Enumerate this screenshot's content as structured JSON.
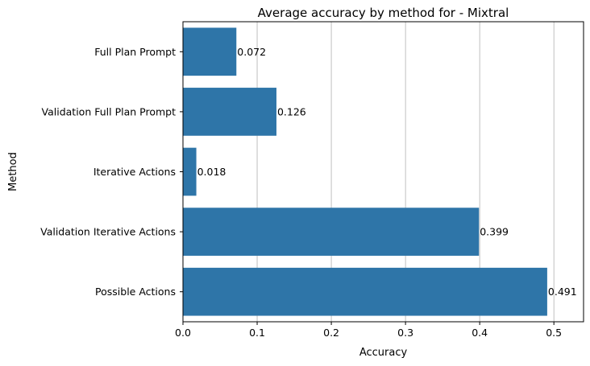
{
  "chart_data": {
    "type": "bar",
    "orientation": "horizontal",
    "title": "Average accuracy by method for - Mixtral",
    "xlabel": "Accuracy",
    "ylabel": "Method",
    "categories": [
      "Full Plan Prompt",
      "Validation Full Plan Prompt",
      "Iterative Actions",
      "Validation Iterative Actions",
      "Possible Actions"
    ],
    "values": [
      0.072,
      0.126,
      0.018,
      0.399,
      0.491
    ],
    "value_labels": [
      "0.072",
      "0.126",
      "0.018",
      "0.399",
      "0.491"
    ],
    "xlim": [
      0,
      0.54
    ],
    "xticks": [
      0.0,
      0.1,
      0.2,
      0.3,
      0.4,
      0.5
    ],
    "xtick_labels": [
      "0.0",
      "0.1",
      "0.2",
      "0.3",
      "0.4",
      "0.5"
    ],
    "grid": "x-major",
    "bar_color": "#2e75a8"
  }
}
